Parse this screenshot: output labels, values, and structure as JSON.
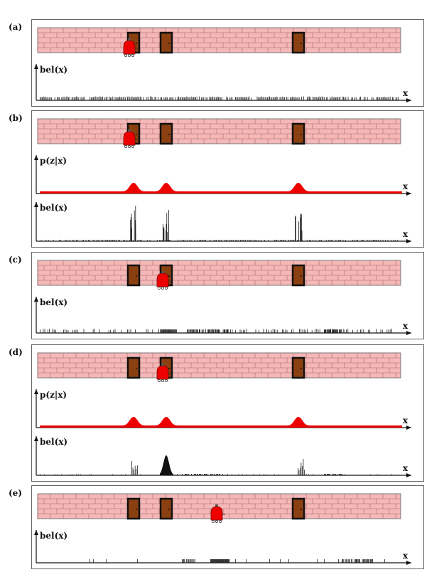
{
  "panels": [
    {
      "label": "(a)",
      "robot_at": 181,
      "plots": [
        {
          "kind": "bel",
          "label": "bel(x)",
          "pattern": "uniform"
        }
      ]
    },
    {
      "label": "(b)",
      "robot_at": 181,
      "plots": [
        {
          "kind": "pzx",
          "label": "p(z|x)"
        },
        {
          "kind": "bel",
          "label": "bel(x)",
          "pattern": "peaks3"
        }
      ]
    },
    {
      "label": "(c)",
      "robot_at": 228,
      "plots": [
        {
          "kind": "bel",
          "label": "bel(x)",
          "pattern": "shifted"
        }
      ]
    },
    {
      "label": "(d)",
      "robot_at": 228,
      "plots": [
        {
          "kind": "pzx",
          "label": "p(z|x)"
        },
        {
          "kind": "bel",
          "label": "bel(x)",
          "pattern": "focused"
        }
      ]
    },
    {
      "label": "(e)",
      "robot_at": 304,
      "plots": [
        {
          "kind": "bel",
          "label": "bel(x)",
          "pattern": "spread"
        }
      ]
    }
  ],
  "x_label": "x",
  "colors": {
    "brick": "#f4b8b8",
    "mortar": "#b06060",
    "door": "#8a4010",
    "frame": "#111111",
    "robot": "#ee0000",
    "pzx": "#ee0000"
  }
}
